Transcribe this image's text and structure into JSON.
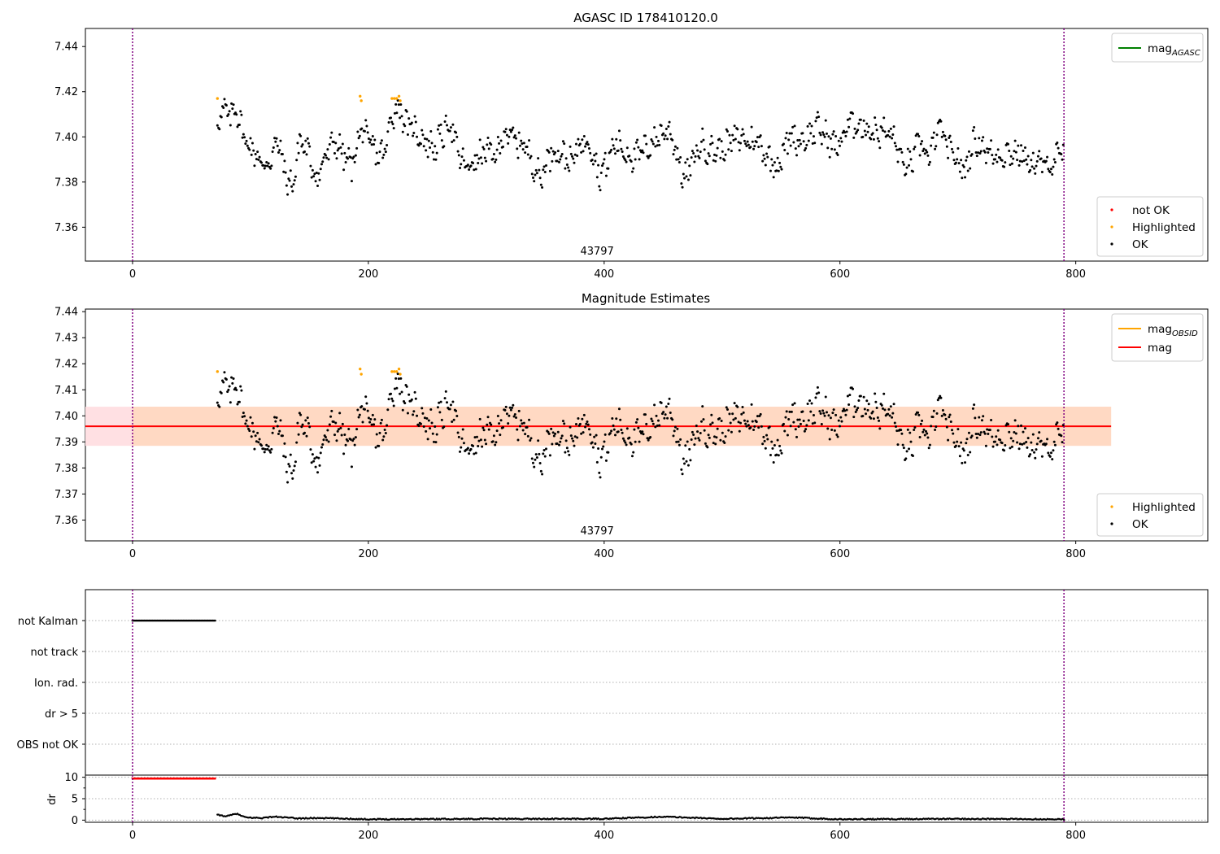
{
  "chart_data": [
    {
      "type": "scatter",
      "title": "AGASC ID 178410120.0",
      "xlim": [
        -40,
        912
      ],
      "ylim": [
        7.345,
        7.448
      ],
      "xticks": [
        0,
        200,
        400,
        600,
        800
      ],
      "yticks": [
        7.36,
        7.38,
        7.4,
        7.42,
        7.44
      ],
      "ytick_format": 2,
      "vlines": [
        0,
        790
      ],
      "obsid_label": "43797",
      "obsid_label_x": 394,
      "series_mode": "agasc",
      "legend_upper": [
        {
          "name": "mag_AGASC",
          "base": "mag",
          "sub": "AGASC",
          "color": "#008000",
          "kind": "line"
        }
      ],
      "legend_lower": [
        {
          "name": "not OK",
          "color": "#ff0000",
          "kind": "dot"
        },
        {
          "name": "Highlighted",
          "color": "#ffa500",
          "kind": "dot"
        },
        {
          "name": "OK",
          "color": "#000000",
          "kind": "dot"
        }
      ],
      "grid": false
    },
    {
      "type": "scatter",
      "title": "Magnitude Estimates",
      "xlim": [
        -40,
        912
      ],
      "ylim": [
        7.352,
        7.441
      ],
      "xticks": [
        0,
        200,
        400,
        600,
        800
      ],
      "yticks": [
        7.36,
        7.37,
        7.38,
        7.39,
        7.4,
        7.41,
        7.42,
        7.43,
        7.44
      ],
      "ytick_format": 2,
      "vlines": [
        0,
        790
      ],
      "obsid_label": "43797",
      "obsid_label_x": 394,
      "series_mode": "estimates",
      "mag_mean": 7.396,
      "mag_band": [
        7.3885,
        7.4035
      ],
      "band_x": [
        -40,
        830
      ],
      "legend_upper": [
        {
          "name": "mag_OBSID",
          "base": "mag",
          "sub": "OBSID",
          "color": "#ffa500",
          "kind": "line"
        },
        {
          "name": "mag",
          "base": "mag",
          "sub": "",
          "color": "#ff0000",
          "kind": "line"
        }
      ],
      "legend_lower": [
        {
          "name": "Highlighted",
          "color": "#ffa500",
          "kind": "dot"
        },
        {
          "name": "OK",
          "color": "#000000",
          "kind": "dot"
        }
      ],
      "grid": false
    },
    {
      "type": "scatter",
      "title": "",
      "xlim": [
        -40,
        912
      ],
      "categories": [
        "not Kalman",
        "not track",
        "Ion. rad.",
        "dr > 5",
        "OBS not OK"
      ],
      "flag_series": [
        {
          "category": "not Kalman",
          "x_range": [
            0,
            70
          ],
          "color": "#000000"
        }
      ],
      "vlines": [
        0,
        790
      ],
      "grid": "horizontal dotted"
    },
    {
      "type": "scatter",
      "title": "",
      "ylabel": "dr",
      "xlim": [
        -40,
        912
      ],
      "ylim": [
        -0.5,
        10.5
      ],
      "xticks": [
        0,
        200,
        400,
        600,
        800
      ],
      "yticks": [
        0,
        5,
        10
      ],
      "vlines": [
        0,
        790
      ],
      "dr_saturated": {
        "x_range": [
          0,
          70
        ],
        "value": 9.7,
        "color": "#ff0000"
      },
      "grid": "horizontal dotted"
    }
  ],
  "series_points": {
    "note_units": "x in sample index, y in magnitude",
    "agasc_anchor_points": [
      [
        72,
        7.405
      ],
      [
        76,
        7.412
      ],
      [
        82,
        7.409
      ],
      [
        88,
        7.413
      ],
      [
        95,
        7.399
      ],
      [
        104,
        7.393
      ],
      [
        112,
        7.386
      ],
      [
        118,
        7.392
      ],
      [
        124,
        7.398
      ],
      [
        130,
        7.382
      ],
      [
        136,
        7.378
      ],
      [
        142,
        7.399
      ],
      [
        150,
        7.392
      ],
      [
        156,
        7.381
      ],
      [
        164,
        7.392
      ],
      [
        172,
        7.398
      ],
      [
        180,
        7.391
      ],
      [
        186,
        7.387
      ],
      [
        194,
        7.404
      ],
      [
        200,
        7.398
      ],
      [
        208,
        7.392
      ],
      [
        214,
        7.393
      ],
      [
        220,
        7.41
      ],
      [
        226,
        7.414
      ],
      [
        232,
        7.405
      ],
      [
        240,
        7.403
      ],
      [
        248,
        7.398
      ],
      [
        256,
        7.395
      ],
      [
        264,
        7.402
      ],
      [
        270,
        7.407
      ],
      [
        276,
        7.392
      ],
      [
        284,
        7.386
      ],
      [
        292,
        7.39
      ],
      [
        300,
        7.394
      ],
      [
        308,
        7.391
      ],
      [
        316,
        7.403
      ],
      [
        324,
        7.398
      ],
      [
        332,
        7.397
      ],
      [
        340,
        7.388
      ],
      [
        346,
        7.381
      ],
      [
        352,
        7.391
      ],
      [
        358,
        7.394
      ],
      [
        366,
        7.392
      ],
      [
        372,
        7.388
      ],
      [
        380,
        7.398
      ],
      [
        388,
        7.398
      ],
      [
        396,
        7.383
      ],
      [
        402,
        7.388
      ],
      [
        410,
        7.398
      ],
      [
        418,
        7.393
      ],
      [
        426,
        7.391
      ],
      [
        434,
        7.394
      ],
      [
        442,
        7.398
      ],
      [
        450,
        7.402
      ],
      [
        456,
        7.403
      ],
      [
        462,
        7.392
      ],
      [
        468,
        7.381
      ],
      [
        474,
        7.388
      ],
      [
        482,
        7.397
      ],
      [
        490,
        7.394
      ],
      [
        498,
        7.394
      ],
      [
        506,
        7.397
      ],
      [
        514,
        7.4
      ],
      [
        522,
        7.398
      ],
      [
        530,
        7.398
      ],
      [
        538,
        7.392
      ],
      [
        546,
        7.387
      ],
      [
        552,
        7.393
      ],
      [
        558,
        7.401
      ],
      [
        566,
        7.398
      ],
      [
        574,
        7.401
      ],
      [
        582,
        7.404
      ],
      [
        590,
        7.399
      ],
      [
        598,
        7.395
      ],
      [
        606,
        7.405
      ],
      [
        614,
        7.406
      ],
      [
        622,
        7.404
      ],
      [
        630,
        7.402
      ],
      [
        638,
        7.402
      ],
      [
        646,
        7.4
      ],
      [
        652,
        7.388
      ],
      [
        660,
        7.388
      ],
      [
        668,
        7.398
      ],
      [
        676,
        7.39
      ],
      [
        684,
        7.405
      ],
      [
        692,
        7.394
      ],
      [
        700,
        7.39
      ],
      [
        706,
        7.384
      ],
      [
        712,
        7.397
      ],
      [
        720,
        7.397
      ],
      [
        728,
        7.392
      ],
      [
        736,
        7.392
      ],
      [
        744,
        7.393
      ],
      [
        752,
        7.393
      ],
      [
        760,
        7.389
      ],
      [
        768,
        7.388
      ],
      [
        776,
        7.387
      ],
      [
        784,
        7.391
      ],
      [
        790,
        7.393
      ]
    ],
    "highlighted": [
      [
        72,
        7.417
      ],
      [
        193,
        7.418
      ],
      [
        194,
        7.416
      ],
      [
        220,
        7.417
      ],
      [
        222,
        7.417
      ],
      [
        224,
        7.417
      ],
      [
        226,
        7.418
      ],
      [
        227,
        7.416
      ]
    ],
    "flags_axis": {
      "not_kalman_count": 70
    },
    "dr_anchor_points": [
      [
        72,
        1.2
      ],
      [
        80,
        0.9
      ],
      [
        88,
        1.5
      ],
      [
        96,
        0.6
      ],
      [
        110,
        0.5
      ],
      [
        120,
        0.8
      ],
      [
        140,
        0.4
      ],
      [
        160,
        0.5
      ],
      [
        200,
        0.2
      ],
      [
        300,
        0.3
      ],
      [
        400,
        0.3
      ],
      [
        450,
        0.8
      ],
      [
        500,
        0.3
      ],
      [
        560,
        0.6
      ],
      [
        600,
        0.2
      ],
      [
        700,
        0.3
      ],
      [
        790,
        0.2
      ]
    ]
  }
}
